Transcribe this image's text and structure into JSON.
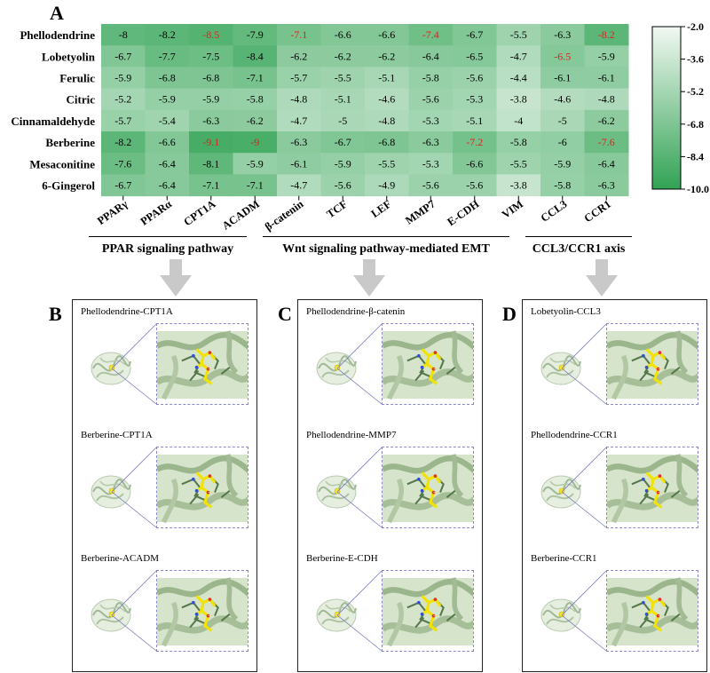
{
  "panel_labels": {
    "a": "A",
    "b": "B",
    "c": "C",
    "d": "D"
  },
  "chart_data": {
    "type": "heatmap",
    "rows": [
      "Phellodendrine",
      "Lobetyolin",
      "Ferulic",
      "Citric",
      "Cinnamaldehyde",
      "Berberine",
      "Mesaconitine",
      "6-Gingerol"
    ],
    "columns": [
      "PPARγ",
      "PPARα",
      "CPT1A",
      "ACADM",
      "β-catenin",
      "TCF",
      "LEF",
      "MMP7",
      "E-CDH",
      "VIM",
      "CCL3",
      "CCR1"
    ],
    "values": [
      [
        "-8",
        "-8.2",
        "-8.5",
        "-7.9",
        "-7.1",
        "-6.6",
        "-6.6",
        "-7.4",
        "-6.7",
        "-5.5",
        "-6.3",
        "-8.2"
      ],
      [
        "-6.7",
        "-7.7",
        "-7.5",
        "-8.4",
        "-6.2",
        "-6.2",
        "-6.2",
        "-6.4",
        "-6.5",
        "-4.7",
        "-6.5",
        "-5.9"
      ],
      [
        "-5.9",
        "-6.8",
        "-6.8",
        "-7.1",
        "-5.7",
        "-5.5",
        "-5.1",
        "-5.8",
        "-5.6",
        "-4.4",
        "-6.1",
        "-6.1"
      ],
      [
        "-5.2",
        "-5.9",
        "-5.9",
        "-5.8",
        "-4.8",
        "-5.1",
        "-4.6",
        "-5.6",
        "-5.3",
        "-3.8",
        "-4.6",
        "-4.8"
      ],
      [
        "-5.7",
        "-5.4",
        "-6.3",
        "-6.2",
        "-4.7",
        "-5",
        "-4.8",
        "-5.3",
        "-5.1",
        "-4",
        "-5",
        "-6.2"
      ],
      [
        "-8.2",
        "-6.6",
        "-9.1",
        "-9",
        "-6.3",
        "-6.7",
        "-6.8",
        "-6.3",
        "-7.2",
        "-5.8",
        "-6",
        "-7.6"
      ],
      [
        "-7.6",
        "-6.4",
        "-8.1",
        "-5.9",
        "-6.1",
        "-5.9",
        "-5.5",
        "-5.3",
        "-6.6",
        "-5.5",
        "-5.9",
        "-6.4"
      ],
      [
        "-6.7",
        "-6.4",
        "-7.1",
        "-7.1",
        "-4.7",
        "-5.6",
        "-4.9",
        "-5.6",
        "-5.6",
        "-3.8",
        "-5.8",
        "-6.3"
      ]
    ],
    "highlighted_cells": [
      [
        0,
        2
      ],
      [
        0,
        4
      ],
      [
        0,
        7
      ],
      [
        0,
        11
      ],
      [
        1,
        10
      ],
      [
        5,
        2
      ],
      [
        5,
        3
      ],
      [
        5,
        8
      ],
      [
        5,
        11
      ]
    ],
    "colorbar": {
      "ticks": [
        "-2.0",
        "-3.6",
        "-5.2",
        "-6.8",
        "-8.4",
        "-10.0"
      ],
      "range": [
        -10,
        -2
      ]
    },
    "colors": {
      "high": "#31a354",
      "low": "#f2f8f2",
      "highlight_text": "#e02020"
    }
  },
  "groups": [
    {
      "label": "PPAR signaling pathway"
    },
    {
      "label": "Wnt signaling pathway-mediated EMT"
    },
    {
      "label": "CCL3/CCR1 axis"
    }
  ],
  "docking": [
    [
      "Phellodendrine-CPT1A",
      "Berberine-CPT1A",
      "Berberine-ACADM"
    ],
    [
      "Phellodendrine-β-catenin",
      "Phellodendrine-MMP7",
      "Berberine-E-CDH"
    ],
    [
      "Lobetyolin-CCL3",
      "Phellodendrine-CCR1",
      "Berberine-CCR1"
    ]
  ]
}
